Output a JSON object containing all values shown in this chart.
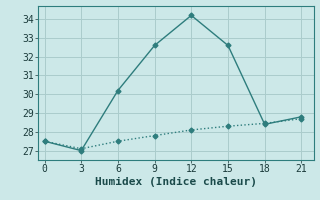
{
  "title": "",
  "xlabel": "Humidex (Indice chaleur)",
  "ylabel": "",
  "background_color": "#cce8e8",
  "grid_color": "#aacccc",
  "line1_x": [
    0,
    3,
    6,
    9,
    12,
    15,
    18,
    21
  ],
  "line1_y": [
    27.5,
    27.0,
    30.2,
    32.6,
    34.2,
    32.6,
    28.4,
    28.8
  ],
  "line2_x": [
    0,
    3,
    6,
    9,
    12,
    15,
    18,
    21
  ],
  "line2_y": [
    27.5,
    27.1,
    27.5,
    27.8,
    28.1,
    28.3,
    28.45,
    28.7
  ],
  "line_color": "#2e7d7d",
  "xlim": [
    -0.5,
    22
  ],
  "ylim": [
    26.5,
    34.7
  ],
  "xticks": [
    0,
    3,
    6,
    9,
    12,
    15,
    18,
    21
  ],
  "yticks": [
    27,
    28,
    29,
    30,
    31,
    32,
    33,
    34
  ],
  "tick_fontsize": 7,
  "xlabel_fontsize": 8,
  "marker": "D",
  "marker_size": 2.5
}
